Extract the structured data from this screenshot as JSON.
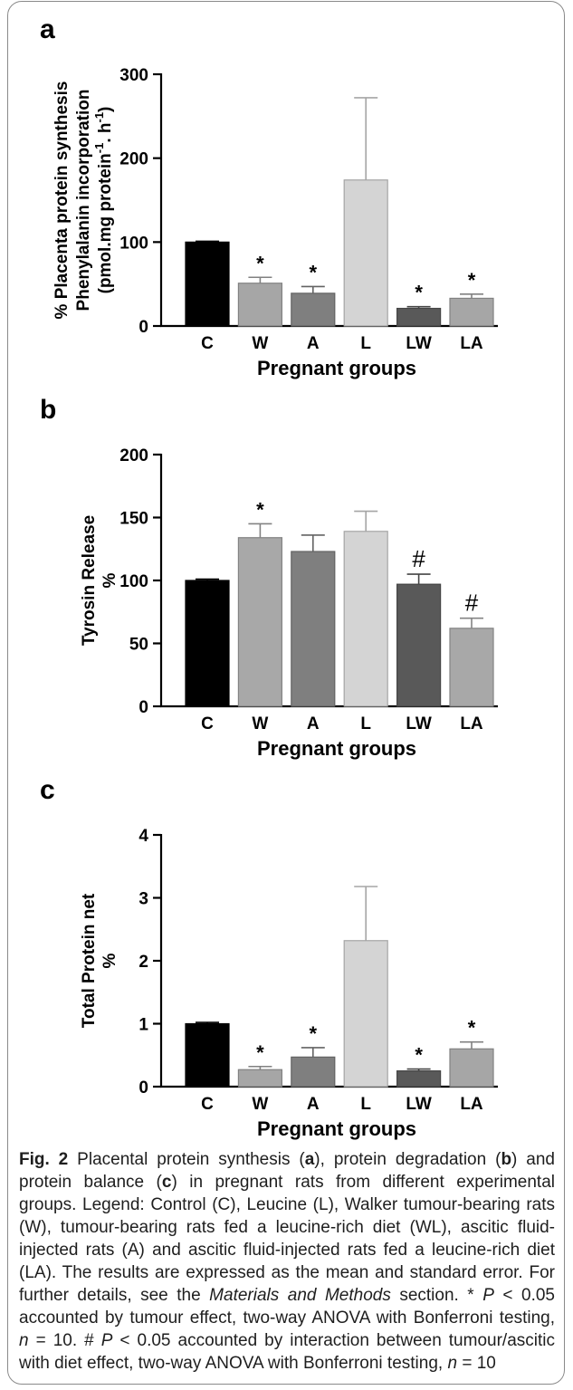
{
  "figure": {
    "caption": [
      [
        {
          "text": "Fig. 2",
          "bold": true
        },
        {
          "text": " Placental protein synthesis ("
        },
        {
          "text": "a",
          "bold": true
        },
        {
          "text": "), protein degradation ("
        },
        {
          "text": "b",
          "bold": true
        },
        {
          "text": ") and"
        }
      ],
      [
        {
          "text": "protein balance ("
        },
        {
          "text": "c",
          "bold": true
        },
        {
          "text": ") in pregnant rats from different experimental"
        }
      ],
      [
        {
          "text": "groups. Legend: Control (C), Leucine (L), Walker tumour-bearing rats"
        }
      ],
      [
        {
          "text": "(W), tumour-bearing rats fed a leucine-rich diet (WL), ascitic fluid-"
        }
      ],
      [
        {
          "text": "injected rats (A) and ascitic fluid-injected rats fed a leucine-rich diet"
        }
      ],
      [
        {
          "text": "(LA). The results are expressed as the mean and standard error. For"
        }
      ],
      [
        {
          "text": "further details, see the "
        },
        {
          "text": "Materials and Methods",
          "italic": true
        },
        {
          "text": " section. * "
        },
        {
          "text": "P",
          "italic": true
        },
        {
          "text": " < 0.05"
        }
      ],
      [
        {
          "text": "accounted by tumour effect, two-way ANOVA with Bonferroni testing,"
        }
      ],
      [
        {
          "text": "n",
          "italic": true
        },
        {
          "text": " = 10. # "
        },
        {
          "text": "P",
          "italic": true
        },
        {
          "text": " < 0.05 accounted by interaction between tumour/ascitic"
        }
      ],
      [
        {
          "text": "with diet effect, two-way ANOVA with Bonferroni testing, "
        },
        {
          "text": "n",
          "italic": true
        },
        {
          "text": " = 10"
        }
      ]
    ]
  },
  "chart_data": [
    {
      "panel": "a",
      "type": "bar",
      "categories": [
        "C",
        "W",
        "A",
        "L",
        "LW",
        "LA"
      ],
      "values": [
        100,
        51,
        39,
        174,
        21,
        33
      ],
      "errors": [
        1,
        7,
        8,
        98,
        2,
        5
      ],
      "significance": [
        "",
        "*",
        "*",
        "",
        "*",
        "*"
      ],
      "colors": [
        "#000000",
        "#a6a6a6",
        "#7f7f7f",
        "#d4d4d4",
        "#595959",
        "#a6a6a6"
      ],
      "xlabel": "Pregnant groups",
      "ylabel": [
        [
          {
            "text": "% Placenta protein synthesis"
          }
        ],
        [
          {
            "text": "Phenylalanin incorporation"
          }
        ],
        [
          {
            "text": "(pmol.mg protein"
          },
          {
            "text": "-1",
            "sup": true
          },
          {
            "text": ". h"
          },
          {
            "text": "-1",
            "sup": true
          },
          {
            "text": ")"
          }
        ]
      ],
      "ylim": [
        0,
        300
      ],
      "yticks": [
        0,
        100,
        200,
        300
      ],
      "grid": false
    },
    {
      "panel": "b",
      "type": "bar",
      "categories": [
        "C",
        "W",
        "A",
        "L",
        "LW",
        "LA"
      ],
      "values": [
        100,
        134,
        123,
        139,
        97,
        62
      ],
      "errors": [
        1,
        11,
        13,
        16,
        8,
        8
      ],
      "significance": [
        "",
        "*",
        "",
        "",
        "#",
        "#"
      ],
      "colors": [
        "#000000",
        "#a8a8a8",
        "#7f7f7f",
        "#d4d4d4",
        "#595959",
        "#a8a8a8"
      ],
      "xlabel": "Pregnant groups",
      "ylabel": [
        [
          {
            "text": "Tyrosin Release"
          }
        ],
        [
          {
            "text": "%"
          }
        ]
      ],
      "ylim": [
        0,
        200
      ],
      "yticks": [
        0,
        50,
        100,
        150,
        200
      ],
      "grid": false
    },
    {
      "panel": "c",
      "type": "bar",
      "categories": [
        "C",
        "W",
        "A",
        "L",
        "LW",
        "LA"
      ],
      "values": [
        1.0,
        0.27,
        0.47,
        2.32,
        0.25,
        0.6
      ],
      "errors": [
        0.02,
        0.05,
        0.15,
        0.86,
        0.03,
        0.11
      ],
      "significance": [
        "",
        "*",
        "*",
        "",
        "*",
        "*"
      ],
      "colors": [
        "#000000",
        "#a6a6a6",
        "#7f7f7f",
        "#d4d4d4",
        "#595959",
        "#a6a6a6"
      ],
      "xlabel": "Pregnant groups",
      "ylabel": [
        [
          {
            "text": "Total Protein net"
          }
        ],
        [
          {
            "text": "%"
          }
        ]
      ],
      "ylim": [
        0,
        4
      ],
      "yticks": [
        0,
        1,
        2,
        3,
        4
      ],
      "grid": false
    }
  ]
}
